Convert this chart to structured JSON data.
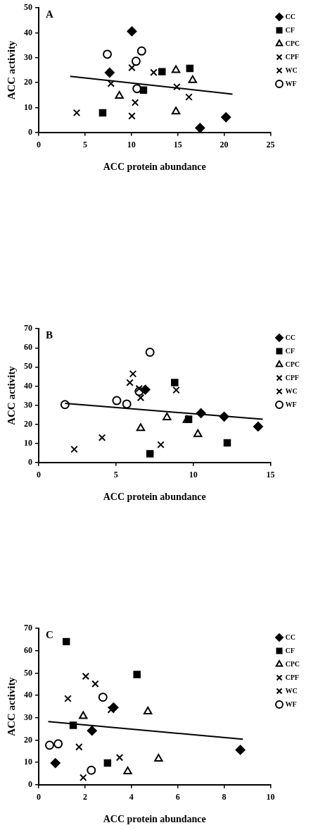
{
  "chart_data": [
    {
      "type": "scatter",
      "annotations": [
        "A"
      ],
      "xlabel": "ACC protein abundance",
      "ylabel": "ACC activity",
      "xlim": [
        0,
        25
      ],
      "xticks": [
        0,
        5,
        10,
        15,
        20,
        25
      ],
      "ylim": [
        0,
        50
      ],
      "yticks": [
        0,
        10,
        20,
        30,
        40,
        50
      ],
      "legend": "top right",
      "series": [
        {
          "name": "CC",
          "color": "#000000",
          "marker": "diamond",
          "x": [
            10.05,
            7.65,
            17.4,
            20.2
          ],
          "values": [
            40.6,
            24,
            1.8,
            6.1
          ]
        },
        {
          "name": "CF",
          "color": "#000000",
          "marker": "square",
          "x": [
            6.9,
            11.3,
            13.3,
            16.3
          ],
          "values": [
            7.9,
            17,
            24.4,
            25.7
          ]
        },
        {
          "name": "CPC",
          "color": "#000000",
          "marker": "triangle",
          "x": [
            8.7,
            14.8,
            14.8,
            16.6
          ],
          "values": [
            14.7,
            25,
            8.4,
            21
          ]
        },
        {
          "name": "CPF",
          "color": "#000000",
          "marker": "cross",
          "x": [
            4.1,
            10.05,
            12.4
          ],
          "values": [
            7.9,
            26,
            24.1
          ]
        },
        {
          "name": "WC",
          "color": "#000000",
          "marker": "cross",
          "x": [
            7.8,
            10.05,
            10.4,
            14.9,
            16.2
          ],
          "values": [
            19.6,
            6.6,
            12,
            18.3,
            14.2
          ]
        },
        {
          "name": "WF",
          "color": "#000000",
          "marker": "circle",
          "x": [
            7.4,
            10.5,
            11.1,
            10.6
          ],
          "values": [
            31.4,
            28.6,
            32.7,
            17.6
          ]
        },
        {
          "type": "line",
          "color": "#000000",
          "marker": "none",
          "x": [
            3.4,
            20.9
          ],
          "values": [
            22.5,
            15.4
          ]
        }
      ]
    },
    {
      "type": "scatter",
      "annotations": [
        "B"
      ],
      "xlabel": "ACC protein abundance",
      "ylabel": "ACC activity",
      "xlim": [
        0,
        15
      ],
      "xticks": [
        0,
        5,
        10,
        15
      ],
      "ylim": [
        0,
        70
      ],
      "yticks": [
        0,
        10,
        20,
        30,
        40,
        50,
        60,
        70
      ],
      "legend": "top right",
      "series": [
        {
          "name": "CC",
          "color": "#000000",
          "marker": "diamond",
          "x": [
            6.9,
            10.5,
            12.0,
            14.2
          ],
          "values": [
            38.1,
            25.8,
            24,
            18.8
          ]
        },
        {
          "name": "CF",
          "color": "#000000",
          "marker": "square",
          "x": [
            7.2,
            8.8,
            9.7,
            12.2
          ],
          "values": [
            4.5,
            41.8,
            22.6,
            10.3
          ]
        },
        {
          "name": "CPC",
          "color": "#000000",
          "marker": "triangle",
          "x": [
            6.6,
            8.3,
            9.6,
            10.3
          ],
          "values": [
            17.9,
            23.6,
            22.2,
            14.8
          ]
        },
        {
          "name": "CPF",
          "color": "#000000",
          "marker": "cross",
          "x": [
            6.1,
            6.5,
            7.9,
            8.9
          ],
          "values": [
            46.4,
            38.7,
            9.3,
            37.9
          ]
        },
        {
          "name": "WC",
          "color": "#000000",
          "marker": "cross",
          "x": [
            2.3,
            4.1,
            5.9,
            6.6
          ],
          "values": [
            6.9,
            13,
            41.8,
            33.9
          ]
        },
        {
          "name": "WF",
          "color": "#000000",
          "marker": "circle",
          "x": [
            1.7,
            5.05,
            5.7,
            6.5,
            7.2
          ],
          "values": [
            30.3,
            32.4,
            30.6,
            37.2,
            57.7
          ]
        },
        {
          "type": "line",
          "color": "#000000",
          "marker": "none",
          "x": [
            1.7,
            14.5
          ],
          "values": [
            30.9,
            22.6
          ]
        }
      ]
    },
    {
      "type": "scatter",
      "annotations": [
        "C"
      ],
      "xlabel": "ACC protein abundance",
      "ylabel": "ACC activity",
      "xlim": [
        0,
        10
      ],
      "xticks": [
        0,
        2,
        4,
        6,
        8,
        10
      ],
      "ylim": [
        0,
        70
      ],
      "yticks": [
        0,
        10,
        20,
        30,
        40,
        50,
        60,
        70
      ],
      "legend": "top right",
      "series": [
        {
          "name": "CC",
          "color": "#000000",
          "marker": "diamond",
          "x": [
            0.72,
            2.3,
            3.23,
            8.7
          ],
          "values": [
            9.7,
            24.2,
            34.6,
            15.6
          ]
        },
        {
          "name": "CF",
          "color": "#000000",
          "marker": "square",
          "x": [
            1.19,
            1.49,
            2.97,
            4.24
          ],
          "values": [
            64.1,
            26.6,
            9.7,
            49.4
          ]
        },
        {
          "name": "CPC",
          "color": "#000000",
          "marker": "triangle",
          "x": [
            1.92,
            3.84,
            4.71,
            5.17
          ],
          "values": [
            30.7,
            5.9,
            32.8,
            11.6
          ]
        },
        {
          "name": "CPF",
          "color": "#000000",
          "marker": "cross",
          "x": [
            1.26,
            2.03,
            1.92,
            3.49
          ],
          "values": [
            38.6,
            48.6,
            3.2,
            12.2
          ]
        },
        {
          "name": "WC",
          "color": "#000000",
          "marker": "cross",
          "x": [
            1.74,
            2.44,
            3.12
          ],
          "values": [
            16.9,
            45.2,
            33.6
          ]
        },
        {
          "name": "WF",
          "color": "#000000",
          "marker": "circle",
          "x": [
            0.47,
            0.84,
            2.27,
            2.77
          ],
          "values": [
            17.7,
            18.3,
            6.5,
            39.2
          ]
        },
        {
          "type": "line",
          "color": "#000000",
          "marker": "none",
          "x": [
            0.41,
            8.81
          ],
          "values": [
            28.3,
            20.4
          ]
        }
      ]
    }
  ]
}
